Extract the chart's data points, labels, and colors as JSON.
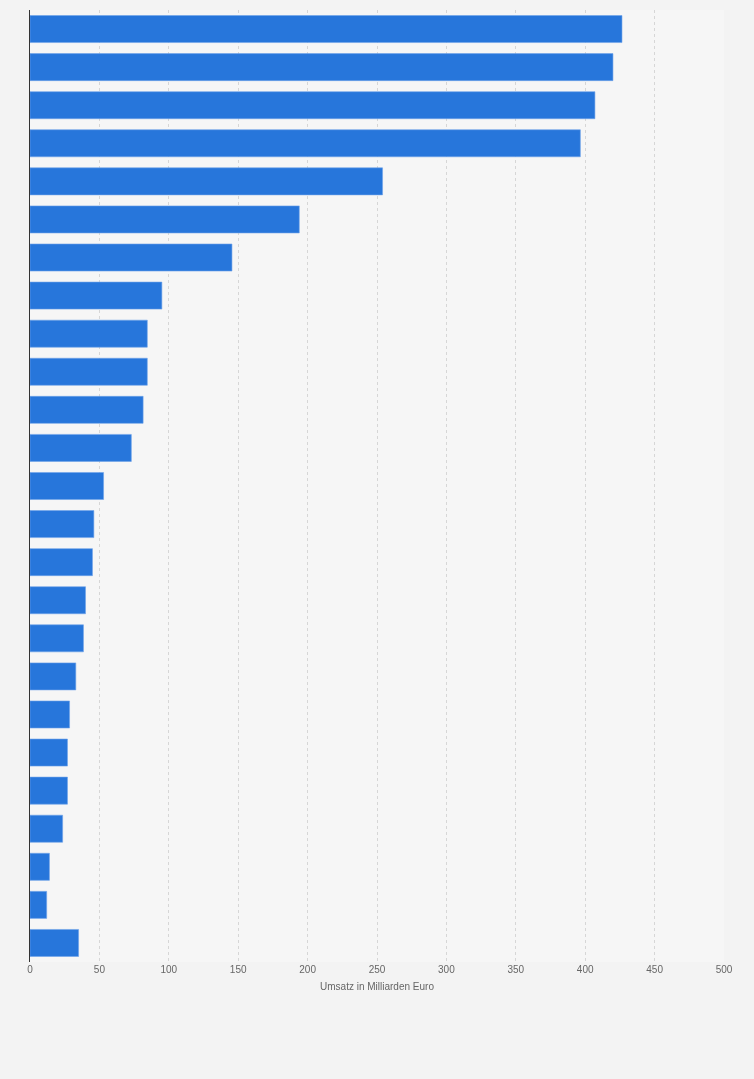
{
  "chart_data": {
    "type": "bar",
    "orientation": "horizontal",
    "xlabel": "Umsatz in Milliarden Euro",
    "categories": [
      null,
      null,
      null,
      null,
      null,
      null,
      null,
      null,
      null,
      null,
      null,
      null,
      null,
      null,
      null,
      null,
      null,
      null,
      null,
      null,
      null,
      null,
      null,
      null,
      null
    ],
    "values": [
      426.5,
      420,
      407,
      396.5,
      254,
      194,
      145.5,
      95,
      84.5,
      84.5,
      81.5,
      73,
      53,
      46,
      45,
      40,
      38.5,
      33,
      28.5,
      27,
      27,
      23.5,
      14,
      12,
      35
    ],
    "color": "#2776db",
    "xlim": [
      0,
      500
    ],
    "xticks": [
      0,
      50,
      100,
      150,
      200,
      250,
      300,
      350,
      400,
      450,
      500
    ],
    "grid": "x"
  }
}
